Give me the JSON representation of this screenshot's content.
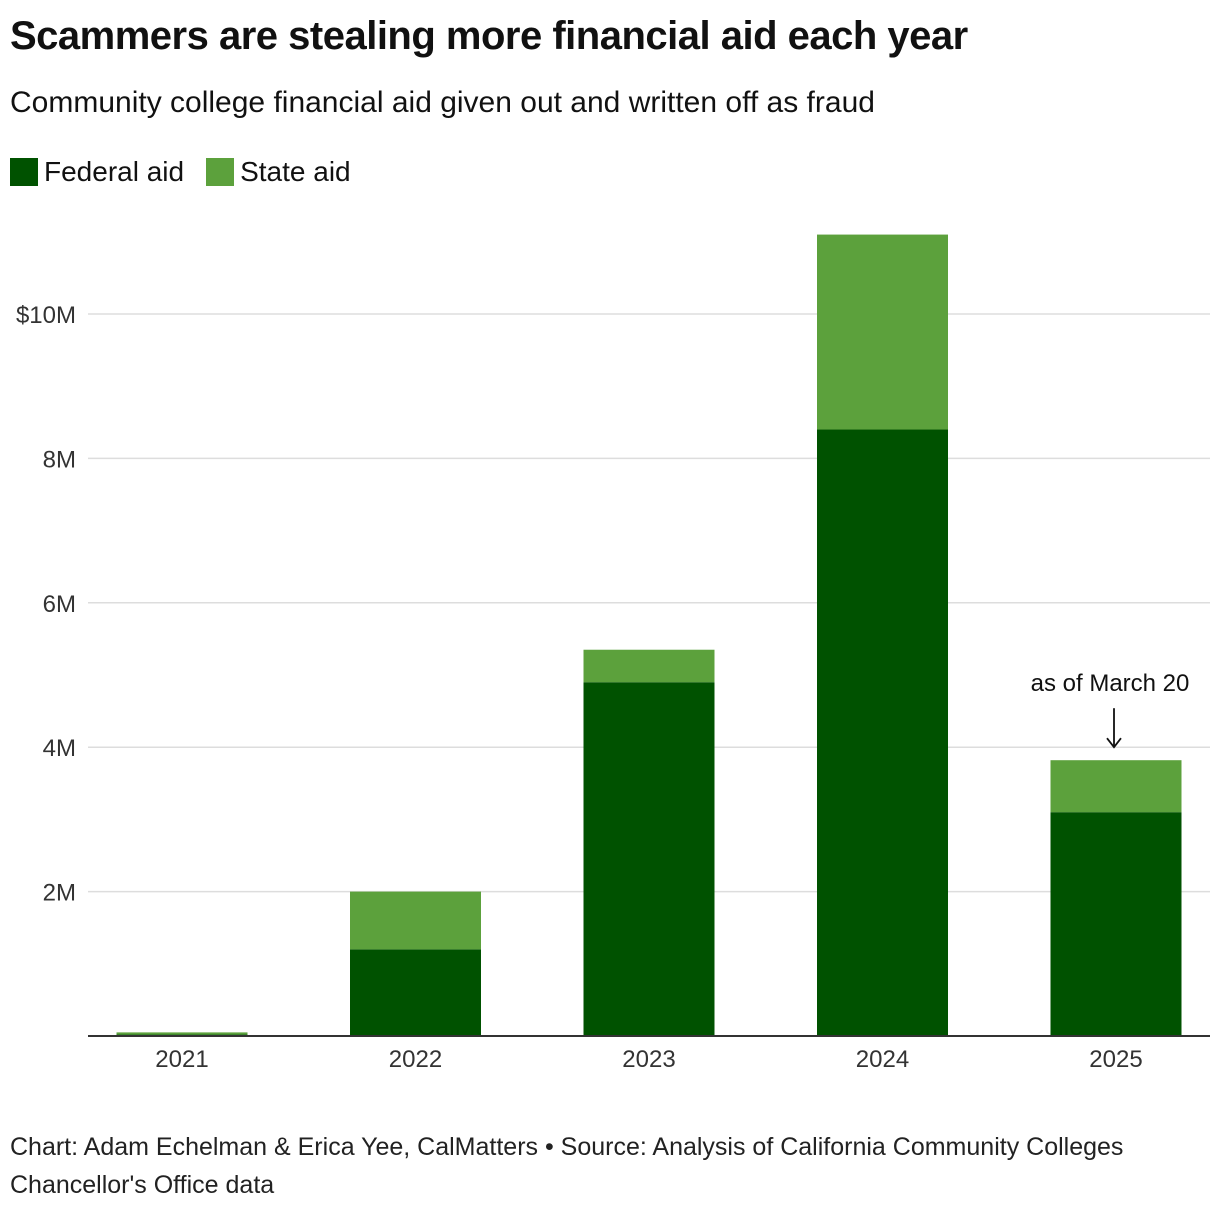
{
  "title": "Scammers are stealing more financial aid each year",
  "subtitle": "Community college financial aid given out and written off as fraud",
  "colors": {
    "federal": "#005200",
    "state": "#5ca13c",
    "grid": "#dddddd",
    "axis": "#333333"
  },
  "chart_data": {
    "type": "bar",
    "stacked": true,
    "categories": [
      "2021",
      "2022",
      "2023",
      "2024",
      "2025"
    ],
    "series": [
      {
        "name": "Federal aid",
        "values": [
          0.02,
          1.2,
          4.9,
          8.4,
          3.1
        ]
      },
      {
        "name": "State aid",
        "values": [
          0.03,
          0.8,
          0.45,
          2.7,
          0.72
        ]
      }
    ],
    "ylim": [
      0,
      11.5
    ],
    "y_ticks": [
      {
        "value": 2,
        "label": "2M"
      },
      {
        "value": 4,
        "label": "4M"
      },
      {
        "value": 6,
        "label": "6M"
      },
      {
        "value": 8,
        "label": "8M"
      },
      {
        "value": 10,
        "label": "$10M"
      }
    ],
    "grid": true,
    "legend_position": "top-left",
    "annotations": [
      {
        "category": "2025",
        "text": "as of March 20"
      }
    ]
  },
  "legend": [
    {
      "label": "Federal aid",
      "color_key": "federal"
    },
    {
      "label": "State aid",
      "color_key": "state"
    }
  ],
  "source": "Chart: Adam Echelman & Erica Yee, CalMatters • Source: Analysis of California Community Colleges Chancellor's Office data"
}
